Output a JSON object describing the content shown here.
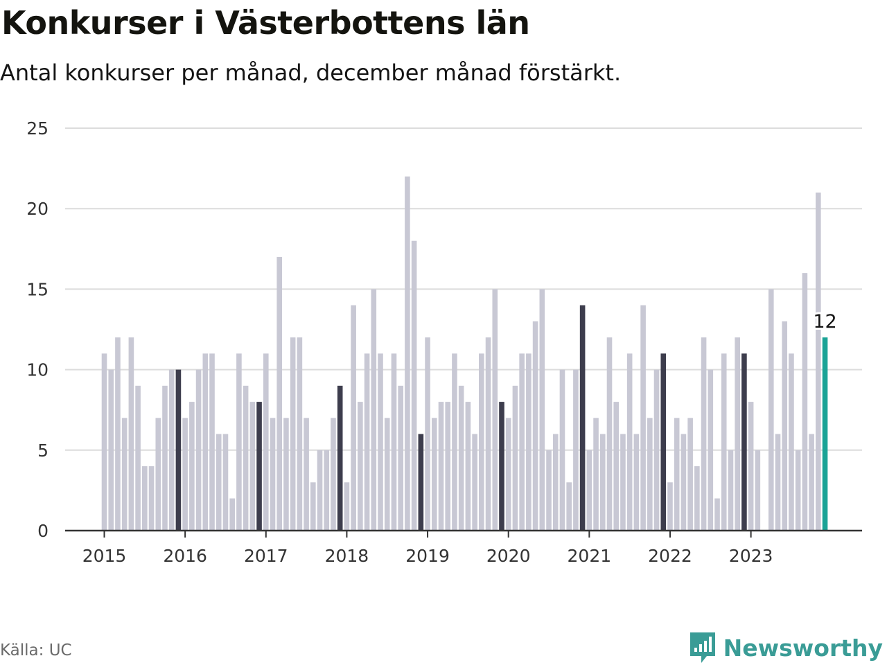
{
  "title": "Konkurser i Västerbottens län",
  "subtitle": "Antal konkurser per månad, december månad förstärkt.",
  "source": "Källa: UC",
  "brand": {
    "name": "Newsworthy",
    "icon": "newsworthy-logo-icon",
    "color": "#3a9c96"
  },
  "chart_data": {
    "type": "bar",
    "x_start": "2015-01",
    "x_end": "2023-12",
    "xlabel": "",
    "ylabel": "",
    "ylim": [
      0,
      25
    ],
    "yticks": [
      "0",
      "5",
      "10",
      "15",
      "20",
      "25"
    ],
    "xtick_labels": [
      "2015",
      "2016",
      "2017",
      "2018",
      "2019",
      "2020",
      "2021",
      "2022",
      "2023"
    ],
    "grid": true,
    "legend": "none",
    "colors": {
      "regular": "#c8c8d4",
      "december": "#3d3d4d",
      "latest": "#1aa396",
      "gridline": "#dcdcdc",
      "axis": "#333333"
    },
    "highlight": "december",
    "annotation": {
      "month": "2023-12",
      "label": "12"
    },
    "series": [
      {
        "values": [
          11,
          10,
          12,
          7,
          12,
          9,
          4,
          4,
          7,
          9,
          10,
          10,
          7,
          8,
          10,
          11,
          11,
          6,
          6,
          2,
          11,
          9,
          8,
          8,
          11,
          7,
          17,
          7,
          12,
          12,
          7,
          3,
          5,
          5,
          7,
          9,
          3,
          14,
          8,
          11,
          15,
          11,
          7,
          11,
          9,
          22,
          18,
          6,
          12,
          7,
          8,
          8,
          11,
          9,
          8,
          6,
          11,
          12,
          15,
          8,
          7,
          9,
          11,
          11,
          13,
          15,
          5,
          6,
          10,
          3,
          10,
          14,
          5,
          7,
          6,
          12,
          8,
          6,
          11,
          6,
          14,
          7,
          10,
          11,
          3,
          7,
          6,
          7,
          4,
          12,
          10,
          2,
          11,
          5,
          12,
          11,
          8,
          5,
          0,
          15,
          6,
          13,
          11,
          5,
          16,
          6,
          21,
          12
        ]
      }
    ]
  }
}
